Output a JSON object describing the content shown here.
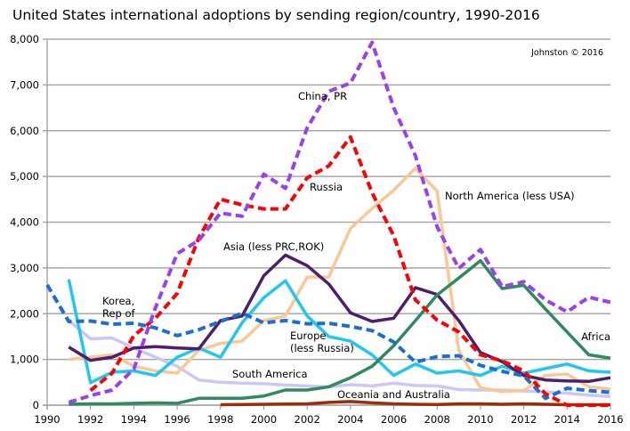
{
  "chart_data": {
    "type": "line",
    "title": "United States international adoptions by sending region/country, 1990-2016",
    "credit": "Johnston © 2016",
    "xlabel": "",
    "ylabel": "",
    "xlim": [
      1990,
      2016
    ],
    "ylim": [
      0,
      8000
    ],
    "grid": true,
    "x_ticks": [
      1990,
      1992,
      1994,
      1996,
      1998,
      2000,
      2002,
      2004,
      2006,
      2008,
      2010,
      2012,
      2014,
      2016
    ],
    "y_ticks": [
      0,
      1000,
      2000,
      3000,
      4000,
      5000,
      6000,
      7000,
      8000
    ],
    "y_tick_labels": [
      "0",
      "1,000",
      "2,000",
      "3,000",
      "4,000",
      "5,000",
      "6,000",
      "7,000",
      "8,000"
    ],
    "series": [
      {
        "name": "South America",
        "label": "South America",
        "color": "#c9c9f7",
        "dashed": false,
        "x": [
          1991,
          1992,
          1993,
          1994,
          1995,
          1996,
          1997,
          1998,
          1999,
          2000,
          2001,
          2002,
          2003,
          2004,
          2005,
          2006,
          2007,
          2008,
          2009,
          2010,
          2011,
          2012,
          2013,
          2014,
          2015,
          2016
        ],
        "values": [
          1850,
          1450,
          1470,
          1250,
          1050,
          850,
          550,
          500,
          480,
          470,
          440,
          420,
          400,
          450,
          420,
          480,
          430,
          420,
          340,
          330,
          330,
          310,
          290,
          260,
          220,
          190
        ]
      },
      {
        "name": "North America (less USA)",
        "label": "North America (less USA)",
        "color": "#fcc793",
        "dashed": false,
        "x": [
          1991,
          1992,
          1993,
          1994,
          1995,
          1996,
          1997,
          1998,
          1999,
          2000,
          2001,
          2002,
          2003,
          2004,
          2005,
          2006,
          2007,
          2008,
          2009,
          2010,
          2011,
          2012,
          2013,
          2014,
          2015,
          2016
        ],
        "values": [
          1000,
          1050,
          1100,
          850,
          750,
          700,
          1200,
          1350,
          1400,
          1850,
          1950,
          2800,
          2800,
          3860,
          4300,
          4700,
          5180,
          4680,
          1200,
          380,
          300,
          320,
          650,
          680,
          400,
          350
        ]
      },
      {
        "name": "Europe (less Russia)",
        "label": "Europe\n(less Russia)",
        "color": "#1ec8f0",
        "dashed": false,
        "x": [
          1991,
          1992,
          1993,
          1994,
          1995,
          1996,
          1997,
          1998,
          1999,
          2000,
          2001,
          2002,
          2003,
          2004,
          2005,
          2006,
          2007,
          2008,
          2009,
          2010,
          2011,
          2012,
          2013,
          2014,
          2015,
          2016
        ],
        "values": [
          2750,
          490,
          720,
          750,
          650,
          1050,
          1250,
          1050,
          1800,
          2350,
          2720,
          1950,
          1500,
          1400,
          1100,
          650,
          900,
          700,
          750,
          650,
          850,
          700,
          800,
          900,
          750,
          720
        ]
      },
      {
        "name": "Asia (less PRC, ROK)",
        "label": "Asia (less PRC,ROK)",
        "color": "#4d1e6e",
        "dashed": false,
        "x": [
          1991,
          1992,
          1993,
          1994,
          1995,
          1996,
          1997,
          1998,
          1999,
          2000,
          2001,
          2002,
          2003,
          2004,
          2005,
          2006,
          2007,
          2008,
          2009,
          2010,
          2011,
          2012,
          2013,
          2014,
          2015,
          2016
        ],
        "values": [
          1270,
          980,
          1050,
          1250,
          1280,
          1250,
          1230,
          1850,
          1950,
          2830,
          3280,
          3050,
          2650,
          2020,
          1830,
          1900,
          2570,
          2420,
          1850,
          1150,
          950,
          650,
          550,
          530,
          520,
          600
        ]
      },
      {
        "name": "Africa",
        "label": "Africa",
        "color": "#2e8b5e",
        "dashed": false,
        "x": [
          1991,
          1992,
          1993,
          1994,
          1995,
          1996,
          1997,
          1998,
          1999,
          2000,
          2001,
          2002,
          2003,
          2004,
          2005,
          2006,
          2007,
          2008,
          2009,
          2010,
          2011,
          2012,
          2013,
          2014,
          2015,
          2016
        ],
        "values": [
          20,
          30,
          30,
          40,
          50,
          40,
          150,
          150,
          150,
          200,
          330,
          330,
          400,
          600,
          850,
          1300,
          1850,
          2410,
          2780,
          3160,
          2550,
          2620,
          2100,
          1600,
          1100,
          1030
        ]
      },
      {
        "name": "Oceania and Australia",
        "label": "Oceania and Australia",
        "color": "#9b2d0b",
        "dashed": false,
        "x": [
          1998,
          1999,
          2000,
          2001,
          2002,
          2003,
          2004,
          2005,
          2006,
          2007,
          2008,
          2009,
          2010,
          2011,
          2012,
          2013,
          2014,
          2015,
          2016
        ],
        "values": [
          10,
          15,
          20,
          25,
          30,
          60,
          80,
          50,
          30,
          20,
          15,
          30,
          30,
          20,
          30,
          20,
          10,
          10,
          10
        ]
      },
      {
        "name": "Korea, Rep of",
        "label": "Korea,\nRep of",
        "color": "#1a6ed4",
        "dashed": true,
        "x": [
          1990,
          1991,
          1992,
          1993,
          1994,
          1995,
          1996,
          1997,
          1998,
          1999,
          2000,
          2001,
          2002,
          2003,
          2004,
          2005,
          2006,
          2007,
          2008,
          2009,
          2010,
          2011,
          2012,
          2013,
          2014,
          2015,
          2016
        ],
        "values": [
          2630,
          1830,
          1840,
          1770,
          1790,
          1690,
          1520,
          1650,
          1830,
          2010,
          1800,
          1850,
          1780,
          1790,
          1720,
          1630,
          1380,
          940,
          1060,
          1080,
          870,
          740,
          640,
          150,
          370,
          320,
          280
        ]
      },
      {
        "name": "Russia",
        "label": "Russia",
        "color": "#ff0000",
        "dashed": true,
        "x": [
          1992,
          1993,
          1994,
          1995,
          1996,
          1997,
          1998,
          1999,
          2000,
          2001,
          2002,
          2003,
          2004,
          2005,
          2006,
          2007,
          2008,
          2009,
          2010,
          2011,
          2012,
          2013,
          2014,
          2015,
          2016
        ],
        "values": [
          320,
          700,
          1520,
          1900,
          2440,
          3660,
          4500,
          4380,
          4290,
          4290,
          4970,
          5230,
          5860,
          4640,
          3700,
          2300,
          1860,
          1600,
          1100,
          970,
          750,
          250,
          0,
          0,
          0
        ]
      },
      {
        "name": "China, PR",
        "label": "China, PR",
        "color": "#9b3ff2",
        "dashed": true,
        "x": [
          1991,
          1992,
          1993,
          1994,
          1995,
          1996,
          1997,
          1998,
          1999,
          2000,
          2001,
          2002,
          2003,
          2004,
          2005,
          2006,
          2007,
          2008,
          2009,
          2010,
          2011,
          2012,
          2013,
          2014,
          2015,
          2016
        ],
        "values": [
          60,
          210,
          330,
          790,
          2130,
          3310,
          3600,
          4200,
          4130,
          5050,
          4740,
          6060,
          6860,
          7040,
          7930,
          6500,
          5450,
          3900,
          2990,
          3400,
          2590,
          2700,
          2300,
          2040,
          2360,
          2250
        ]
      }
    ]
  }
}
